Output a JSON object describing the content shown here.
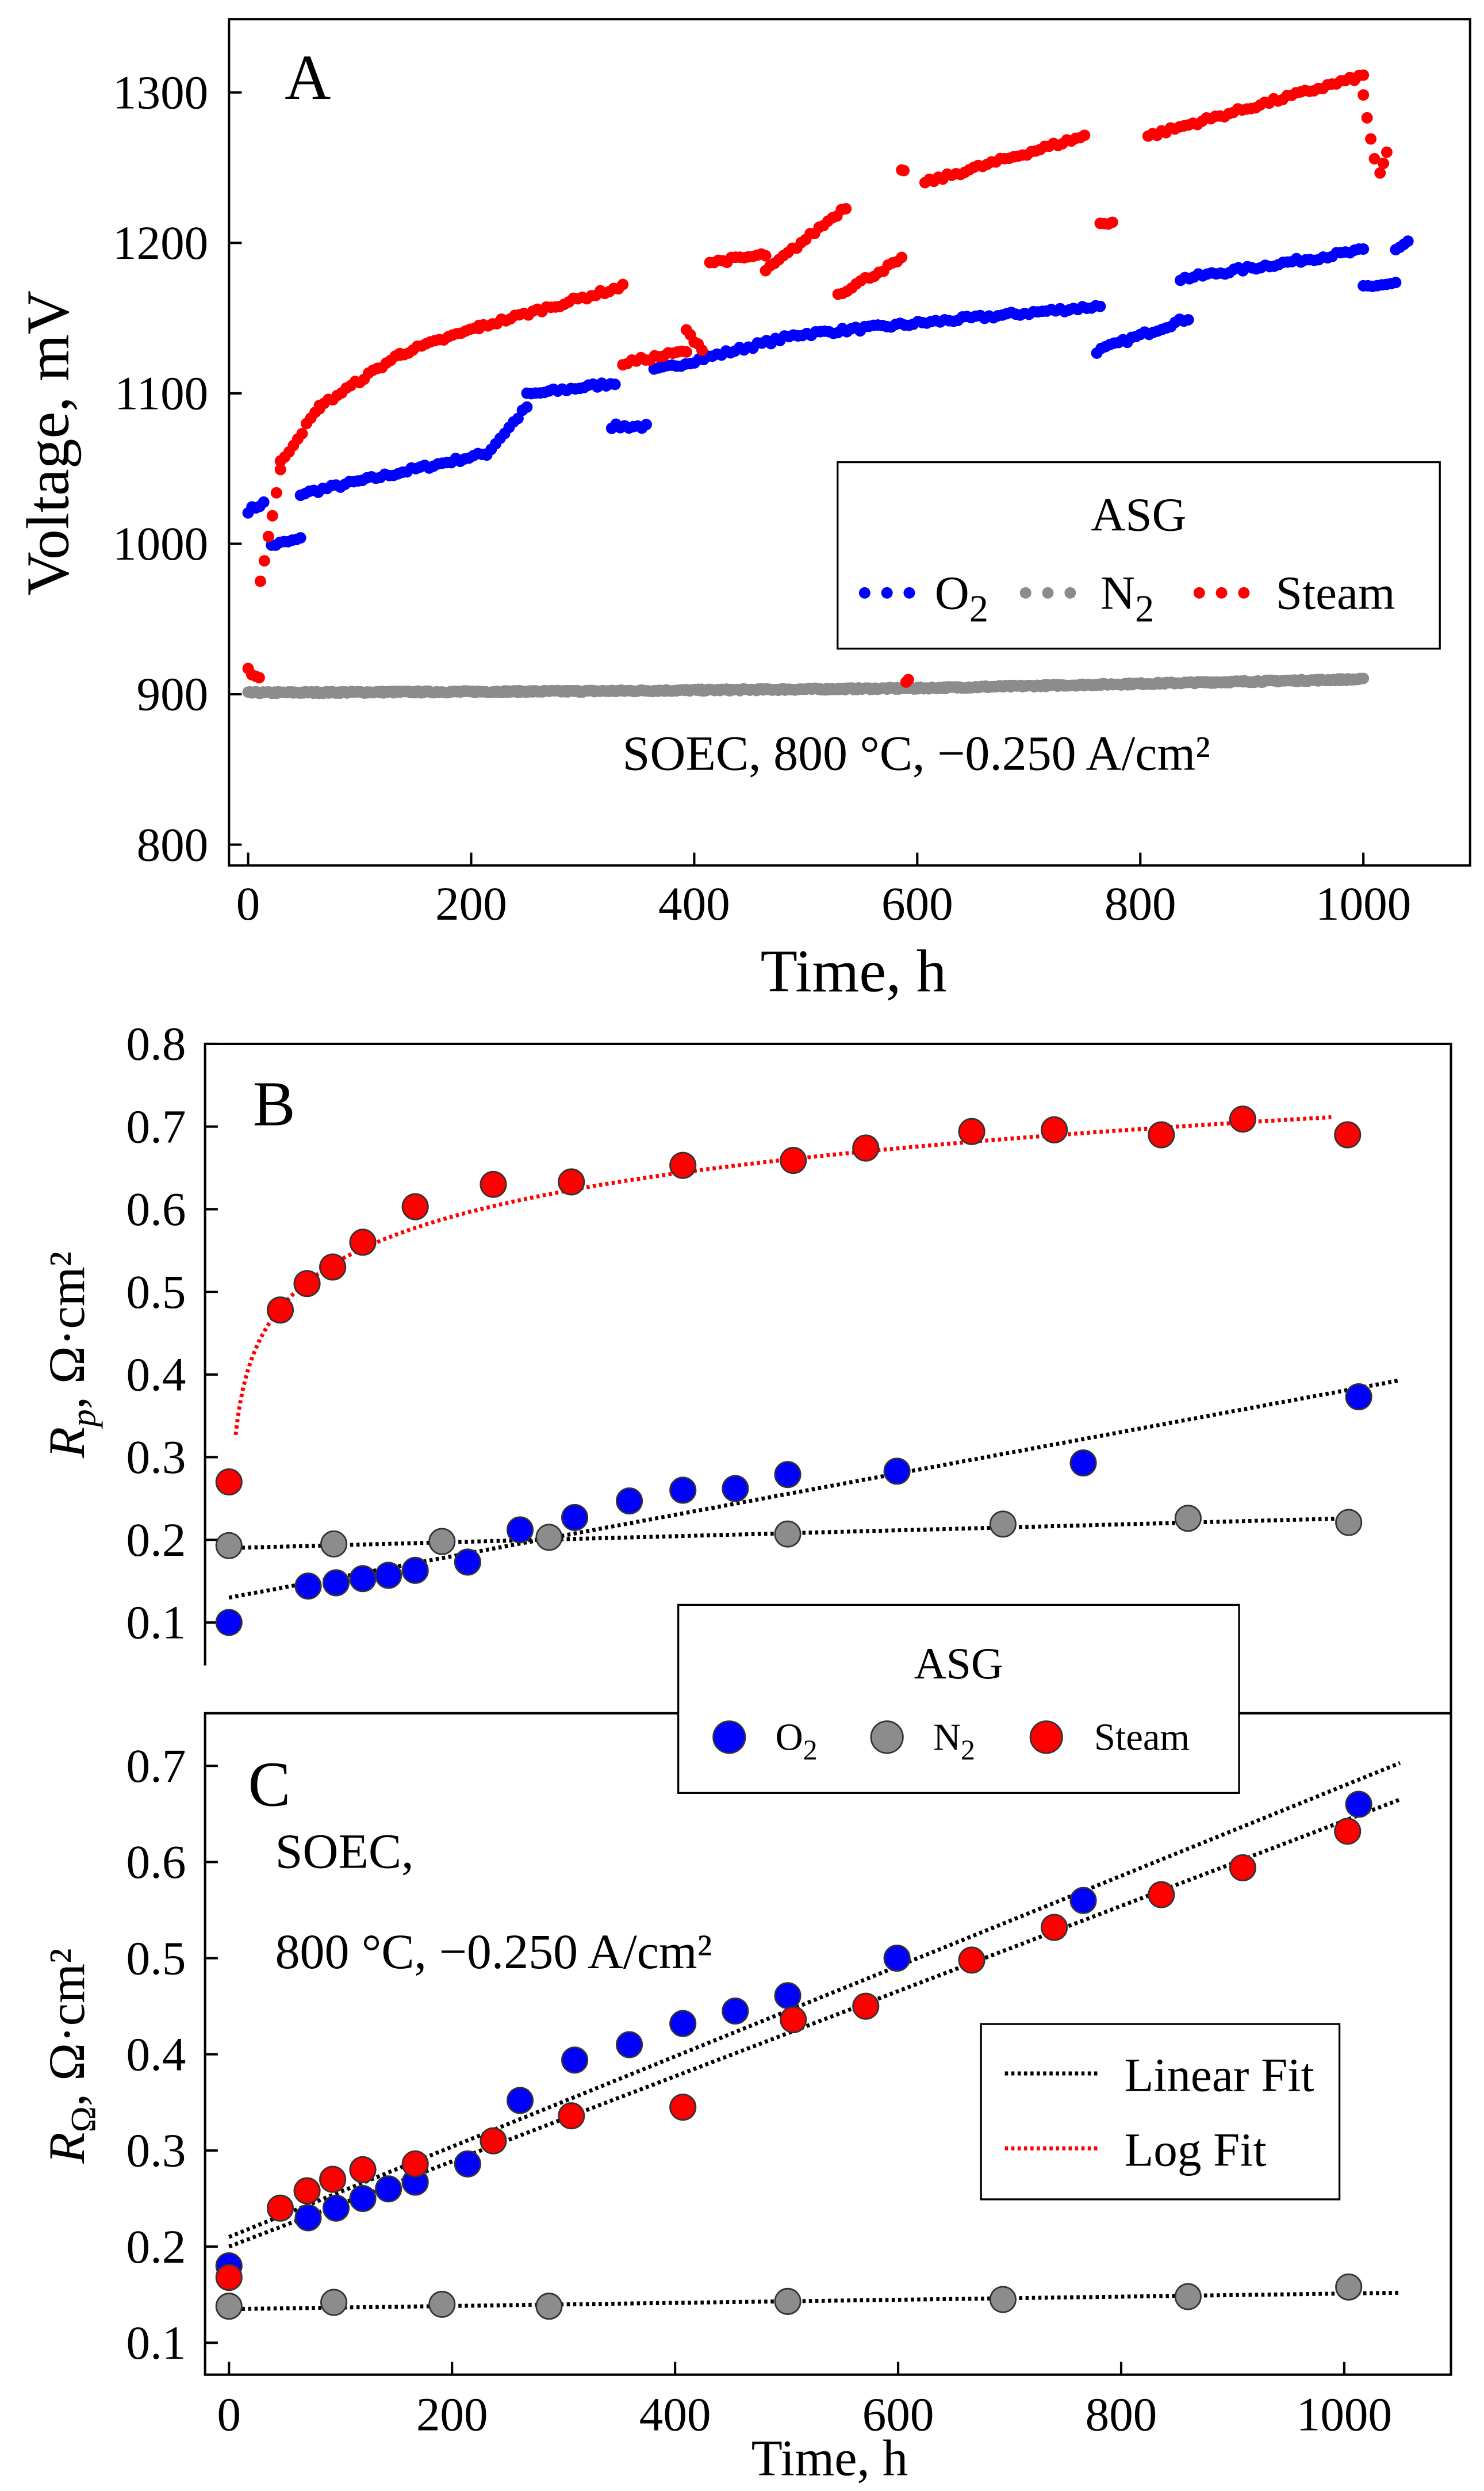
{
  "colors": {
    "O2": "#0000ff",
    "N2": "#8c8c8c",
    "Steam": "#ff0000",
    "linear_fit": "#000000",
    "log_fit": "#ff0000"
  },
  "legend_top": {
    "title": "ASG",
    "entries": [
      {
        "label": "O",
        "sub": "2"
      },
      {
        "label": "N",
        "sub": "2"
      },
      {
        "label": "Steam",
        "sub": ""
      }
    ]
  },
  "legend_bottom": {
    "title": "ASG",
    "entries": [
      {
        "label": "O",
        "sub": "2"
      },
      {
        "label": "N",
        "sub": "2"
      },
      {
        "label": "Steam",
        "sub": ""
      }
    ]
  },
  "legend_fit": {
    "entries": [
      {
        "label": "Linear Fit"
      },
      {
        "label": "Log Fit"
      }
    ]
  },
  "chart_data": [
    {
      "panel": "A",
      "type": "scatter",
      "xlabel": "Time, h",
      "ylabel": "Voltage, mV",
      "xlim": [
        -20,
        1080
      ],
      "ylim": [
        800,
        1320
      ],
      "xticks": [
        0,
        200,
        400,
        600,
        800,
        1000
      ],
      "yticks": [
        800,
        900,
        1000,
        1100,
        1200,
        1300
      ],
      "annotation": "SOEC, 800 °C, −0.250 A/cm²",
      "note": "series given as linear segments [t_start, V_start, t_end, V_end] sampled densely",
      "series": [
        {
          "name": "O2",
          "segments": [
            [
              0,
              1022,
              14,
              1027
            ],
            [
              21,
              999,
              47,
              1003
            ],
            [
              47,
              1033,
              214,
              1060
            ],
            [
              214,
              1060,
              250,
              1091
            ],
            [
              250,
              1099,
              329,
              1107
            ],
            [
              326,
              1078,
              357,
              1078
            ],
            [
              364,
              1115,
              493,
              1139
            ],
            [
              493,
              1139,
              764,
              1158
            ],
            [
              761,
              1128,
              843,
              1150
            ],
            [
              836,
              1176,
              1000,
              1195
            ],
            [
              1000,
              1171,
              1029,
              1173
            ],
            [
              1029,
              1195,
              1040,
              1200
            ]
          ]
        },
        {
          "name": "N2",
          "segments": [
            [
              0,
              901,
              300,
              902
            ],
            [
              300,
              902,
              600,
              904
            ],
            [
              600,
              904,
              1000,
              910
            ]
          ]
        },
        {
          "name": "Steam",
          "segments": [
            [
              0,
              916,
              10,
              911
            ],
            [
              11,
              975,
              29,
              1049
            ],
            [
              29,
              1054,
              64,
              1091
            ],
            [
              64,
              1091,
              136,
              1126
            ],
            [
              136,
              1126,
              207,
              1144
            ],
            [
              207,
              1144,
              336,
              1171
            ],
            [
              336,
              1120,
              393,
              1128
            ],
            [
              393,
              1141,
              407,
              1130
            ],
            [
              414,
              1187,
              464,
              1192
            ],
            [
              464,
              1181,
              536,
              1224
            ],
            [
              529,
              1166,
              586,
              1189
            ],
            [
              586,
              1247,
              588,
              1247
            ],
            [
              590,
              909,
              592,
              909
            ],
            [
              607,
              1240,
              750,
              1271
            ],
            [
              764,
              1213,
              775,
              1214
            ],
            [
              807,
              1271,
              1000,
              1311
            ],
            [
              1000,
              1298,
              1010,
              1255
            ],
            [
              1015,
              1245,
              1021,
              1260
            ]
          ]
        }
      ]
    },
    {
      "panel": "B",
      "type": "scatter",
      "xlabel": "",
      "ylabel": "R_p, Ω·cm²",
      "ylabel_main": "R",
      "ylabel_sub": "p",
      "ylabel_rest": ", Ω·cm²",
      "xlim": [
        -20,
        1100
      ],
      "ylim": [
        0.07,
        0.8
      ],
      "yticks": [
        0.1,
        0.2,
        0.3,
        0.4,
        0.5,
        0.6,
        0.7,
        0.8
      ],
      "series": [
        {
          "name": "Steam",
          "x": [
            0,
            46,
            70,
            93,
            120,
            167,
            237,
            307,
            407,
            506,
            571,
            666,
            740,
            836,
            909,
            1003
          ],
          "y": [
            0.27,
            0.478,
            0.51,
            0.53,
            0.56,
            0.603,
            0.63,
            0.633,
            0.653,
            0.659,
            0.674,
            0.694,
            0.696,
            0.69,
            0.709,
            0.69
          ]
        },
        {
          "name": "O2",
          "x": [
            0,
            71,
            96,
            120,
            143,
            167,
            214,
            261,
            310,
            359,
            407,
            454,
            501,
            599,
            766,
            1013
          ],
          "y": [
            0.1,
            0.144,
            0.148,
            0.153,
            0.157,
            0.163,
            0.173,
            0.212,
            0.227,
            0.247,
            0.26,
            0.262,
            0.279,
            0.283,
            0.293,
            0.373
          ]
        },
        {
          "name": "N2",
          "x": [
            0,
            94,
            191,
            287,
            501,
            694,
            860,
            1004
          ],
          "y": [
            0.193,
            0.195,
            0.198,
            0.203,
            0.207,
            0.219,
            0.226,
            0.221
          ]
        }
      ],
      "fits": [
        {
          "series": "O2",
          "type": "linear",
          "x": [
            0,
            1050
          ],
          "y": [
            0.13,
            0.393
          ]
        },
        {
          "series": "N2",
          "type": "linear",
          "x": [
            0,
            1005
          ],
          "y": [
            0.19,
            0.226
          ]
        },
        {
          "series": "Steam",
          "type": "log",
          "a": 0.192,
          "b": 0.0753,
          "x": [
            6,
            1000
          ]
        }
      ]
    },
    {
      "panel": "C",
      "type": "scatter",
      "xlabel": "Time, h",
      "ylabel": "R_Ω, Ω·cm²",
      "ylabel_main": "R",
      "ylabel_sub": "Ω",
      "ylabel_rest": ", Ω·cm²",
      "xlim": [
        -20,
        1100
      ],
      "ylim": [
        0.1,
        0.75
      ],
      "xticks": [
        0,
        200,
        400,
        600,
        800,
        1000
      ],
      "yticks": [
        0.1,
        0.2,
        0.3,
        0.4,
        0.5,
        0.6,
        0.7
      ],
      "annotation_line1": "SOEC,",
      "annotation_line2": "800 °C, −0.250 A/cm²",
      "series": [
        {
          "name": "O2",
          "x": [
            0,
            71,
            96,
            120,
            143,
            167,
            214,
            261,
            310,
            359,
            407,
            454,
            501,
            599,
            766,
            1013
          ],
          "y": [
            0.18,
            0.23,
            0.24,
            0.25,
            0.26,
            0.267,
            0.286,
            0.352,
            0.394,
            0.41,
            0.432,
            0.445,
            0.461,
            0.5,
            0.56,
            0.66
          ]
        },
        {
          "name": "Steam",
          "x": [
            0,
            46,
            70,
            93,
            120,
            167,
            237,
            307,
            407,
            506,
            571,
            666,
            740,
            836,
            909,
            1003
          ],
          "y": [
            0.168,
            0.24,
            0.258,
            0.27,
            0.28,
            0.286,
            0.31,
            0.336,
            0.345,
            0.436,
            0.45,
            0.498,
            0.532,
            0.566,
            0.594,
            0.632
          ]
        },
        {
          "name": "N2",
          "x": [
            0,
            94,
            191,
            287,
            501,
            694,
            860,
            1004
          ],
          "y": [
            0.138,
            0.142,
            0.14,
            0.138,
            0.143,
            0.145,
            0.148,
            0.158
          ]
        }
      ],
      "fits": [
        {
          "series": "O2",
          "type": "linear",
          "x": [
            0,
            1050
          ],
          "y": [
            0.21,
            0.703
          ]
        },
        {
          "series": "Steam",
          "type": "linear",
          "x": [
            0,
            1050
          ],
          "y": [
            0.2,
            0.665
          ]
        },
        {
          "series": "N2",
          "type": "linear",
          "x": [
            0,
            1050
          ],
          "y": [
            0.135,
            0.152
          ]
        }
      ]
    }
  ]
}
